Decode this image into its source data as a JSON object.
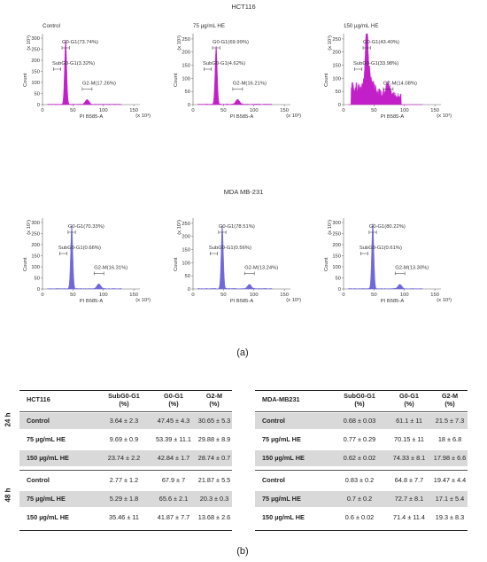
{
  "figure": {
    "top_title": "HCT116",
    "mid_title": "MDA MB-231",
    "panel_a": "(a)",
    "panel_b": "(b)"
  },
  "histograms": [
    {
      "title": "Control",
      "color": "#c21fc8",
      "ylabel": "Count",
      "xlabel": "PI B585-A",
      "yexp": "(x 10¹)",
      "xexp": "(x 10³)",
      "yticks": [
        "0",
        "50",
        "100",
        "150",
        "200",
        "250",
        "300"
      ],
      "ymax": 320,
      "xticks": [
        "0",
        "50",
        "100",
        "150"
      ],
      "g0g1": "G0-G1(73.74%)",
      "sub": "SubG0-G1(3.32%)",
      "g2m": "G2-M(17.26%)",
      "peak": 290,
      "g2peak": 22,
      "noise": false
    },
    {
      "title": "75 µg/mL HE",
      "color": "#c21fc8",
      "ylabel": "Count",
      "xlabel": "PI B585-A",
      "yexp": "(x 10¹)",
      "xexp": "(x 10³)",
      "yticks": [
        "0",
        "50",
        "100",
        "150",
        "200",
        "250"
      ],
      "ymax": 270,
      "xticks": [
        "0",
        "50",
        "100",
        "150"
      ],
      "g0g1": "G0-G1(69.99%)",
      "sub": "SubG0-G1(4.62%)",
      "g2m": "G2-M(16.21%)",
      "peak": 220,
      "g2peak": 18,
      "noise": false
    },
    {
      "title": "150 µg/mL HE",
      "color": "#c21fc8",
      "ylabel": "Count",
      "xlabel": "PI B585-A",
      "yexp": "(x 10¹)",
      "xexp": "(x 10³)",
      "yticks": [
        "0",
        "50",
        "100",
        "150",
        "200",
        "250"
      ],
      "ymax": 270,
      "xticks": [
        "0",
        "50",
        "100",
        "150"
      ],
      "g0g1": "G0-G1(43.40%)",
      "sub": "SubG0-G1(33.98%)",
      "g2m": "G2-M(14.08%)",
      "peak": 205,
      "g2peak": 38,
      "noise": true
    },
    {
      "title": "",
      "color": "#7068d8",
      "ylabel": "Count",
      "xlabel": "PI B585-A",
      "yexp": "(x 10¹)",
      "xexp": "(x 10³)",
      "yticks": [
        "0",
        "50",
        "100",
        "150",
        "200",
        "250",
        "300"
      ],
      "ymax": 320,
      "xticks": [
        "0",
        "50",
        "100",
        "150"
      ],
      "g0g1": "G0-G1(70.33%)",
      "sub": "SubG0-G1(0.66%)",
      "g2m": "G2-M(16.31%)",
      "peak": 285,
      "g2peak": 22,
      "noise": false
    },
    {
      "title": "",
      "color": "#7068d8",
      "ylabel": "Count",
      "xlabel": "PI B585-A",
      "yexp": "(x 10¹)",
      "xexp": "(x 10³)",
      "yticks": [
        "0",
        "50",
        "100",
        "150",
        "200",
        "250"
      ],
      "ymax": 270,
      "xticks": [
        "0",
        "50",
        "100",
        "150"
      ],
      "g0g1": "G0-G1(78.51%)",
      "sub": "SubG0-G1(0.56%)",
      "g2m": "G2-M(13.24%)",
      "peak": 240,
      "g2peak": 16,
      "noise": false
    },
    {
      "title": "",
      "color": "#7068d8",
      "ylabel": "Count",
      "xlabel": "PI B585-A",
      "yexp": "(x 10¹)",
      "xexp": "(x 10³)",
      "yticks": [
        "0",
        "50",
        "100",
        "150",
        "200",
        "250",
        "300"
      ],
      "ymax": 320,
      "xticks": [
        "0",
        "50",
        "100",
        "150"
      ],
      "g0g1": "G0-G1(80.22%)",
      "sub": "SubG0-G1(0.61%)",
      "g2m": "G2-M(13.30%)",
      "peak": 295,
      "g2peak": 20,
      "noise": false
    }
  ],
  "table_left": {
    "headers": [
      "HCT116",
      "SubG0-G1\n(%)",
      "G0-G1\n(%)",
      "G2-M\n(%)"
    ],
    "rows": [
      [
        "Control",
        "3.64 ± 2.3",
        "47.45 ± 4.3",
        "30.65 ± 5.3"
      ],
      [
        "75 µg/mL HE",
        "9.69 ± 0.9",
        "53.39 ± 11.1",
        "29.88 ± 8.9"
      ],
      [
        "150 µg/mL HE",
        "23.74 ± 2.2",
        "42.84 ± 1.7",
        "28.74 ± 0.7"
      ],
      [
        "Control",
        "2.77 ± 1.2",
        "67.9 ± 7",
        "21.87 ± 5.5"
      ],
      [
        "75 µg/mL HE",
        "5.29 ± 1.8",
        "65.6 ± 2.1",
        "20.3 ± 0.3"
      ],
      [
        "150 µg/mL HE",
        "35.46 ± 11",
        "41.87 ± 7.7",
        "13.68 ± 2.6"
      ]
    ]
  },
  "table_right": {
    "headers": [
      "MDA-MB231",
      "SubG0-G1\n(%)",
      "G0-G1\n(%)",
      "G2-M\n(%)"
    ],
    "rows": [
      [
        "Control",
        "0.68 ± 0.03",
        "61.1 ±  11",
        "21.5 ± 7.3"
      ],
      [
        "75 µg/mL HE",
        "0.77 ± 0.29",
        "70.15 ±  11",
        "18 ± 6.8"
      ],
      [
        "150 µg/mL HE",
        "0.62 ±  0.02",
        "74.33 ±  8.1",
        "17.98 ± 6.6"
      ],
      [
        "Control",
        "0.83 ± 0.2",
        "64.8 ± 7.7",
        "19.47 ± 4.4"
      ],
      [
        "75 µg/mL HE",
        "0.7 ± 0.2",
        "72.7 ± 8.1",
        "17.1 ± 5.4"
      ],
      [
        "150 µg/mL HE",
        "0.6 ± 0.02",
        "71.4 ± 11.4",
        "19.3 ± 8.3"
      ]
    ]
  },
  "time_labels": [
    "24 h",
    "48 h"
  ],
  "chart_data": [
    {
      "type": "area",
      "title": "Control",
      "series": [
        {
          "name": "G0-G1",
          "values": [
            73.74
          ]
        },
        {
          "name": "SubG0-G1",
          "values": [
            3.32
          ]
        },
        {
          "name": "G2-M",
          "values": [
            17.26
          ]
        }
      ],
      "xlabel": "PI B585-A",
      "ylabel": "Count",
      "xlim": [
        0,
        160
      ],
      "ylim": [
        0,
        320
      ]
    },
    {
      "type": "area",
      "title": "75 µg/mL HE",
      "series": [
        {
          "name": "G0-G1",
          "values": [
            69.99
          ]
        },
        {
          "name": "SubG0-G1",
          "values": [
            4.62
          ]
        },
        {
          "name": "G2-M",
          "values": [
            16.21
          ]
        }
      ],
      "xlabel": "PI B585-A",
      "ylabel": "Count",
      "xlim": [
        0,
        160
      ],
      "ylim": [
        0,
        270
      ]
    },
    {
      "type": "area",
      "title": "150 µg/mL HE",
      "series": [
        {
          "name": "G0-G1",
          "values": [
            43.4
          ]
        },
        {
          "name": "SubG0-G1",
          "values": [
            33.98
          ]
        },
        {
          "name": "G2-M",
          "values": [
            14.08
          ]
        }
      ],
      "xlabel": "PI B585-A",
      "ylabel": "Count",
      "xlim": [
        0,
        160
      ],
      "ylim": [
        0,
        270
      ]
    },
    {
      "type": "area",
      "title": "",
      "series": [
        {
          "name": "G0-G1",
          "values": [
            70.33
          ]
        },
        {
          "name": "SubG0-G1",
          "values": [
            0.66
          ]
        },
        {
          "name": "G2-M",
          "values": [
            16.31
          ]
        }
      ],
      "xlabel": "PI B585-A",
      "ylabel": "Count",
      "xlim": [
        0,
        160
      ],
      "ylim": [
        0,
        320
      ]
    },
    {
      "type": "area",
      "title": "",
      "series": [
        {
          "name": "G0-G1",
          "values": [
            78.51
          ]
        },
        {
          "name": "SubG0-G1",
          "values": [
            0.56
          ]
        },
        {
          "name": "G2-M",
          "values": [
            13.24
          ]
        }
      ],
      "xlabel": "PI B585-A",
      "ylabel": "Count",
      "xlim": [
        0,
        160
      ],
      "ylim": [
        0,
        270
      ]
    },
    {
      "type": "area",
      "title": "",
      "series": [
        {
          "name": "G0-G1",
          "values": [
            80.22
          ]
        },
        {
          "name": "SubG0-G1",
          "values": [
            0.61
          ]
        },
        {
          "name": "G2-M",
          "values": [
            13.3
          ]
        }
      ],
      "xlabel": "PI B585-A",
      "ylabel": "Count",
      "xlim": [
        0,
        160
      ],
      "ylim": [
        0,
        320
      ]
    }
  ]
}
